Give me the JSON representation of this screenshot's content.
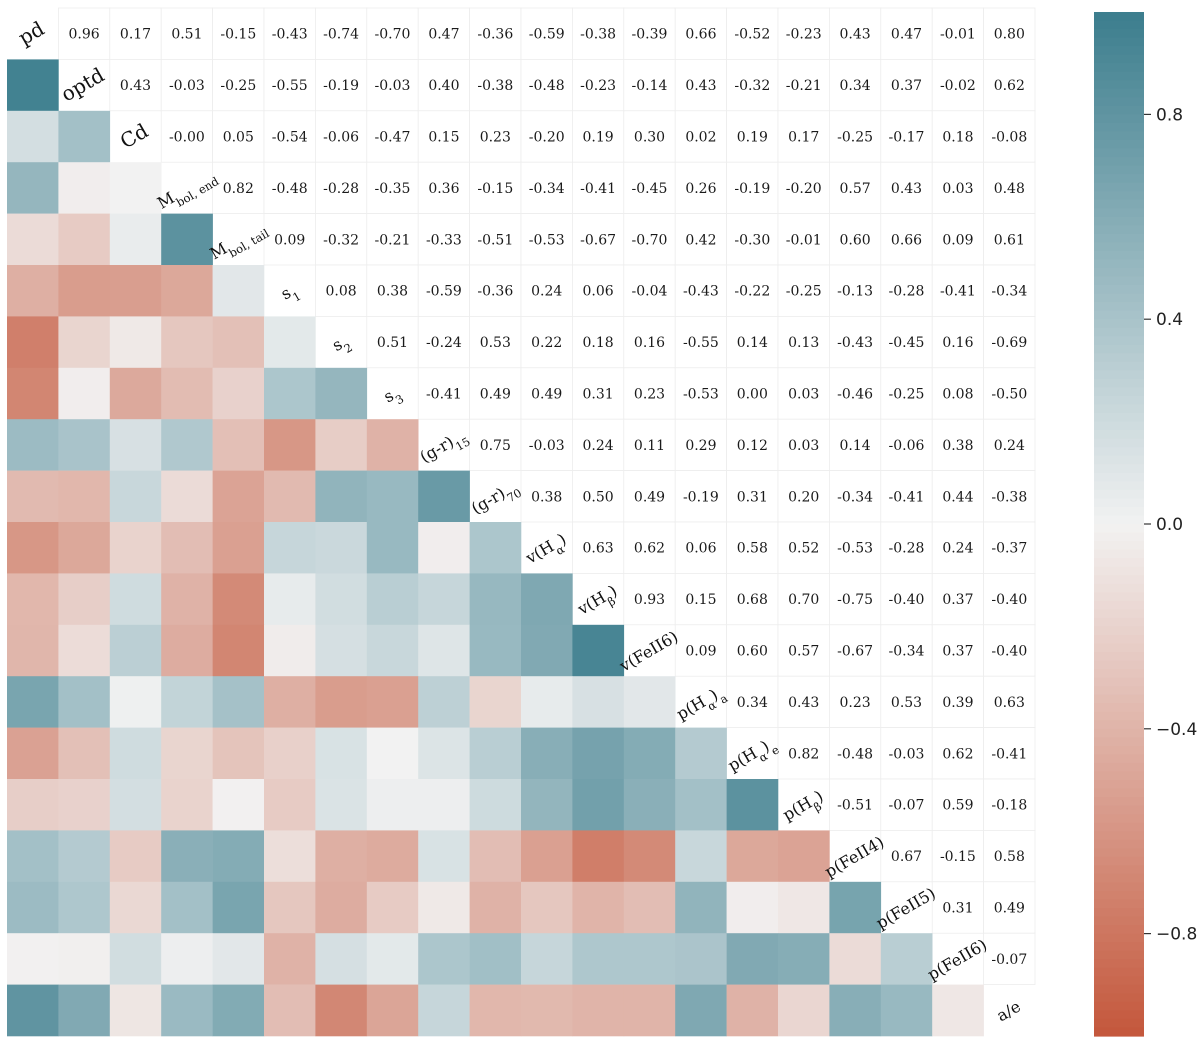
{
  "chart_data": {
    "type": "heatmap",
    "title": "",
    "xlabel": "",
    "ylabel": "",
    "grid": false,
    "lower_triangle": "colored cells",
    "upper_triangle": "numeric labels",
    "diagonal": "variable names",
    "variables": [
      {
        "name": "pd"
      },
      {
        "name": "optd"
      },
      {
        "name": "Cd"
      },
      {
        "name": "M",
        "sub": "bol, end"
      },
      {
        "name": "M",
        "sub": "bol, tail"
      },
      {
        "name": "s",
        "sub": "1"
      },
      {
        "name": "s",
        "sub": "2"
      },
      {
        "name": "s",
        "sub": "3"
      },
      {
        "name": "(g-r)",
        "sub": "15"
      },
      {
        "name": "(g-r)",
        "sub": "70"
      },
      {
        "name": "v(H",
        "greek": "α",
        "suffix": ")"
      },
      {
        "name": "v(H",
        "greek": "β",
        "suffix": ")"
      },
      {
        "name": "v(FeII6)"
      },
      {
        "name": "p(H",
        "greek": "α",
        "suffix": ")",
        "sub": "a"
      },
      {
        "name": "p(H",
        "greek": "α",
        "suffix": ")",
        "sub": "e"
      },
      {
        "name": "p(H",
        "greek": "β",
        "suffix": ")"
      },
      {
        "name": "p(FeII4)"
      },
      {
        "name": "p(FeII5)"
      },
      {
        "name": "p(FeII6)"
      },
      {
        "name": "a/e"
      }
    ],
    "labels": [
      [
        "",
        "0.96",
        "0.17",
        "0.51",
        "-0.15",
        "-0.43",
        "-0.74",
        "-0.70",
        "0.47",
        "-0.36",
        "-0.59",
        "-0.38",
        "-0.39",
        "0.66",
        "-0.52",
        "-0.23",
        "0.43",
        "0.47",
        "-0.01",
        "0.80"
      ],
      [
        "",
        "",
        "0.43",
        "-0.03",
        "-0.25",
        "-0.55",
        "-0.19",
        "-0.03",
        "0.40",
        "-0.38",
        "-0.48",
        "-0.23",
        "-0.14",
        "0.43",
        "-0.32",
        "-0.21",
        "0.34",
        "0.37",
        "-0.02",
        "0.62"
      ],
      [
        "",
        "",
        "",
        "-0.00",
        "0.05",
        "-0.54",
        "-0.06",
        "-0.47",
        "0.15",
        "0.23",
        "-0.20",
        "0.19",
        "0.30",
        "0.02",
        "0.19",
        "0.17",
        "-0.25",
        "-0.17",
        "0.18",
        "-0.08"
      ],
      [
        "",
        "",
        "",
        "",
        "0.82",
        "-0.48",
        "-0.28",
        "-0.35",
        "0.36",
        "-0.15",
        "-0.34",
        "-0.41",
        "-0.45",
        "0.26",
        "-0.19",
        "-0.20",
        "0.57",
        "0.43",
        "0.03",
        "0.48"
      ],
      [
        "",
        "",
        "",
        "",
        "",
        "0.09",
        "-0.32",
        "-0.21",
        "-0.33",
        "-0.51",
        "-0.53",
        "-0.67",
        "-0.70",
        "0.42",
        "-0.30",
        "-0.01",
        "0.60",
        "0.66",
        "0.09",
        "0.61"
      ],
      [
        "",
        "",
        "",
        "",
        "",
        "",
        "0.08",
        "0.38",
        "-0.59",
        "-0.36",
        "0.24",
        "0.06",
        "-0.04",
        "-0.43",
        "-0.22",
        "-0.25",
        "-0.13",
        "-0.28",
        "-0.41",
        "-0.34"
      ],
      [
        "",
        "",
        "",
        "",
        "",
        "",
        "",
        "0.51",
        "-0.24",
        "0.53",
        "0.22",
        "0.18",
        "0.16",
        "-0.55",
        "0.14",
        "0.13",
        "-0.43",
        "-0.45",
        "0.16",
        "-0.69"
      ],
      [
        "",
        "",
        "",
        "",
        "",
        "",
        "",
        "",
        "-0.41",
        "0.49",
        "0.49",
        "0.31",
        "0.23",
        "-0.53",
        "0.00",
        "0.03",
        "-0.46",
        "-0.25",
        "0.08",
        "-0.50"
      ],
      [
        "",
        "",
        "",
        "",
        "",
        "",
        "",
        "",
        "",
        "0.75",
        "-0.03",
        "0.24",
        "0.11",
        "0.29",
        "0.12",
        "0.03",
        "0.14",
        "-0.06",
        "0.38",
        "0.24"
      ],
      [
        "",
        "",
        "",
        "",
        "",
        "",
        "",
        "",
        "",
        "",
        "0.38",
        "0.50",
        "0.49",
        "-0.19",
        "0.31",
        "0.20",
        "-0.34",
        "-0.41",
        "0.44",
        "-0.38"
      ],
      [
        "",
        "",
        "",
        "",
        "",
        "",
        "",
        "",
        "",
        "",
        "",
        "0.63",
        "0.62",
        "0.06",
        "0.58",
        "0.52",
        "-0.53",
        "-0.28",
        "0.24",
        "-0.37"
      ],
      [
        "",
        "",
        "",
        "",
        "",
        "",
        "",
        "",
        "",
        "",
        "",
        "",
        "0.93",
        "0.15",
        "0.68",
        "0.70",
        "-0.75",
        "-0.40",
        "0.37",
        "-0.40"
      ],
      [
        "",
        "",
        "",
        "",
        "",
        "",
        "",
        "",
        "",
        "",
        "",
        "",
        "",
        "0.09",
        "0.60",
        "0.57",
        "-0.67",
        "-0.34",
        "0.37",
        "-0.40"
      ],
      [
        "",
        "",
        "",
        "",
        "",
        "",
        "",
        "",
        "",
        "",
        "",
        "",
        "",
        "",
        "0.34",
        "0.43",
        "0.23",
        "0.53",
        "0.39",
        "0.63"
      ],
      [
        "",
        "",
        "",
        "",
        "",
        "",
        "",
        "",
        "",
        "",
        "",
        "",
        "",
        "",
        "",
        "0.82",
        "-0.48",
        "-0.03",
        "0.62",
        "-0.41"
      ],
      [
        "",
        "",
        "",
        "",
        "",
        "",
        "",
        "",
        "",
        "",
        "",
        "",
        "",
        "",
        "",
        "",
        "-0.51",
        "-0.07",
        "0.59",
        "-0.18"
      ],
      [
        "",
        "",
        "",
        "",
        "",
        "",
        "",
        "",
        "",
        "",
        "",
        "",
        "",
        "",
        "",
        "",
        "",
        "0.67",
        "-0.15",
        "0.58"
      ],
      [
        "",
        "",
        "",
        "",
        "",
        "",
        "",
        "",
        "",
        "",
        "",
        "",
        "",
        "",
        "",
        "",
        "",
        "",
        "0.31",
        "0.49"
      ],
      [
        "",
        "",
        "",
        "",
        "",
        "",
        "",
        "",
        "",
        "",
        "",
        "",
        "",
        "",
        "",
        "",
        "",
        "",
        "",
        "-0.07"
      ],
      [
        "",
        "",
        "",
        "",
        "",
        "",
        "",
        "",
        "",
        "",
        "",
        "",
        "",
        "",
        "",
        "",
        "",
        "",
        "",
        ""
      ]
    ],
    "colorbar": {
      "range": [
        -1,
        1
      ],
      "ticks": [
        -0.8,
        -0.4,
        0.0,
        0.4,
        0.8
      ],
      "tick_labels": [
        "−0.8",
        "−0.4",
        "0.0",
        "0.4",
        "0.8"
      ],
      "colors": {
        "negative": "#c4573b",
        "zero": "#f2f2f2",
        "positive": "#3b7d8d"
      }
    },
    "matrix_note": "lower-triangle cell colors encode correlation values"
  }
}
